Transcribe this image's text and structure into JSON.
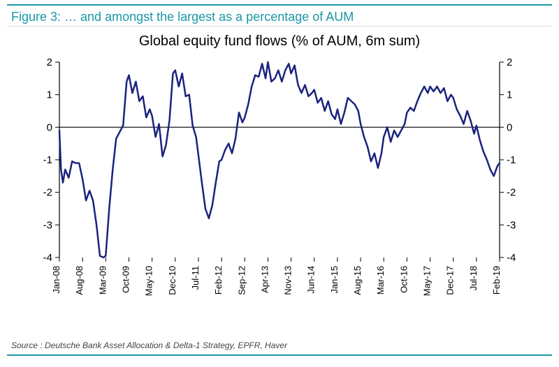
{
  "figure_label": "Figure 3:  … and amongst the largest as a percentage of AUM",
  "chart_title": "Global equity fund flows (% of AUM, 6m sum)",
  "source": "Source : Deutsche Bank Asset Allocation & Delta-1 Strategy, EPFR, Haver",
  "chart": {
    "type": "line",
    "ylim": [
      -4,
      2
    ],
    "ytick_step": 1,
    "x_labels": [
      "Jan-08",
      "Aug-08",
      "Mar-09",
      "Oct-09",
      "May-10",
      "Dec-10",
      "Jul-11",
      "Feb-12",
      "Sep-12",
      "Apr-13",
      "Nov-13",
      "Jun-14",
      "Jan-15",
      "Aug-15",
      "Mar-16",
      "Oct-16",
      "May-17",
      "Dec-17",
      "Jul-18",
      "Feb-19"
    ],
    "line_color": "#1a237e",
    "line_width": 2.5,
    "axis_color": "#000000",
    "tick_color": "#000000",
    "tick_length": 6,
    "background_color": "#ffffff",
    "series": [
      {
        "x": 0.0,
        "y": -0.1
      },
      {
        "x": 0.07,
        "y": -1.3
      },
      {
        "x": 0.15,
        "y": -1.7
      },
      {
        "x": 0.25,
        "y": -1.3
      },
      {
        "x": 0.4,
        "y": -1.55
      },
      {
        "x": 0.55,
        "y": -1.05
      },
      {
        "x": 0.7,
        "y": -1.1
      },
      {
        "x": 0.85,
        "y": -1.1
      },
      {
        "x": 1.0,
        "y": -1.6
      },
      {
        "x": 1.15,
        "y": -2.25
      },
      {
        "x": 1.3,
        "y": -1.95
      },
      {
        "x": 1.45,
        "y": -2.25
      },
      {
        "x": 1.6,
        "y": -3.0
      },
      {
        "x": 1.75,
        "y": -3.95
      },
      {
        "x": 1.9,
        "y": -4.0
      },
      {
        "x": 2.0,
        "y": -3.95
      },
      {
        "x": 2.15,
        "y": -2.5
      },
      {
        "x": 2.3,
        "y": -1.3
      },
      {
        "x": 2.45,
        "y": -0.35
      },
      {
        "x": 2.6,
        "y": -0.15
      },
      {
        "x": 2.75,
        "y": 0.05
      },
      {
        "x": 2.9,
        "y": 1.4
      },
      {
        "x": 3.0,
        "y": 1.6
      },
      {
        "x": 3.15,
        "y": 1.05
      },
      {
        "x": 3.3,
        "y": 1.4
      },
      {
        "x": 3.45,
        "y": 0.8
      },
      {
        "x": 3.6,
        "y": 0.95
      },
      {
        "x": 3.75,
        "y": 0.3
      },
      {
        "x": 3.9,
        "y": 0.55
      },
      {
        "x": 4.0,
        "y": 0.35
      },
      {
        "x": 4.15,
        "y": -0.3
      },
      {
        "x": 4.3,
        "y": 0.1
      },
      {
        "x": 4.45,
        "y": -0.9
      },
      {
        "x": 4.6,
        "y": -0.55
      },
      {
        "x": 4.75,
        "y": 0.2
      },
      {
        "x": 4.9,
        "y": 1.65
      },
      {
        "x": 5.0,
        "y": 1.75
      },
      {
        "x": 5.15,
        "y": 1.25
      },
      {
        "x": 5.3,
        "y": 1.65
      },
      {
        "x": 5.45,
        "y": 0.95
      },
      {
        "x": 5.6,
        "y": 1.0
      },
      {
        "x": 5.75,
        "y": 0.05
      },
      {
        "x": 5.9,
        "y": -0.3
      },
      {
        "x": 6.0,
        "y": -0.85
      },
      {
        "x": 6.15,
        "y": -1.7
      },
      {
        "x": 6.3,
        "y": -2.5
      },
      {
        "x": 6.45,
        "y": -2.8
      },
      {
        "x": 6.6,
        "y": -2.4
      },
      {
        "x": 6.75,
        "y": -1.7
      },
      {
        "x": 6.9,
        "y": -1.05
      },
      {
        "x": 7.0,
        "y": -1.0
      },
      {
        "x": 7.15,
        "y": -0.7
      },
      {
        "x": 7.3,
        "y": -0.5
      },
      {
        "x": 7.45,
        "y": -0.8
      },
      {
        "x": 7.6,
        "y": -0.35
      },
      {
        "x": 7.75,
        "y": 0.45
      },
      {
        "x": 7.9,
        "y": 0.15
      },
      {
        "x": 8.0,
        "y": 0.3
      },
      {
        "x": 8.15,
        "y": 0.7
      },
      {
        "x": 8.3,
        "y": 1.25
      },
      {
        "x": 8.45,
        "y": 1.6
      },
      {
        "x": 8.6,
        "y": 1.55
      },
      {
        "x": 8.75,
        "y": 1.95
      },
      {
        "x": 8.9,
        "y": 1.5
      },
      {
        "x": 9.0,
        "y": 2.0
      },
      {
        "x": 9.15,
        "y": 1.4
      },
      {
        "x": 9.3,
        "y": 1.5
      },
      {
        "x": 9.45,
        "y": 1.75
      },
      {
        "x": 9.6,
        "y": 1.4
      },
      {
        "x": 9.75,
        "y": 1.75
      },
      {
        "x": 9.9,
        "y": 1.95
      },
      {
        "x": 10.0,
        "y": 1.65
      },
      {
        "x": 10.15,
        "y": 1.9
      },
      {
        "x": 10.3,
        "y": 1.3
      },
      {
        "x": 10.45,
        "y": 1.05
      },
      {
        "x": 10.6,
        "y": 1.3
      },
      {
        "x": 10.75,
        "y": 0.95
      },
      {
        "x": 10.9,
        "y": 1.05
      },
      {
        "x": 11.0,
        "y": 1.15
      },
      {
        "x": 11.15,
        "y": 0.75
      },
      {
        "x": 11.3,
        "y": 0.9
      },
      {
        "x": 11.45,
        "y": 0.5
      },
      {
        "x": 11.6,
        "y": 0.8
      },
      {
        "x": 11.75,
        "y": 0.4
      },
      {
        "x": 11.9,
        "y": 0.25
      },
      {
        "x": 12.0,
        "y": 0.55
      },
      {
        "x": 12.15,
        "y": 0.1
      },
      {
        "x": 12.3,
        "y": 0.45
      },
      {
        "x": 12.45,
        "y": 0.9
      },
      {
        "x": 12.6,
        "y": 0.8
      },
      {
        "x": 12.75,
        "y": 0.7
      },
      {
        "x": 12.9,
        "y": 0.5
      },
      {
        "x": 13.0,
        "y": 0.1
      },
      {
        "x": 13.15,
        "y": -0.3
      },
      {
        "x": 13.3,
        "y": -0.6
      },
      {
        "x": 13.45,
        "y": -1.05
      },
      {
        "x": 13.6,
        "y": -0.8
      },
      {
        "x": 13.75,
        "y": -1.25
      },
      {
        "x": 13.9,
        "y": -0.8
      },
      {
        "x": 14.0,
        "y": -0.3
      },
      {
        "x": 14.15,
        "y": 0.0
      },
      {
        "x": 14.3,
        "y": -0.45
      },
      {
        "x": 14.45,
        "y": -0.1
      },
      {
        "x": 14.6,
        "y": -0.3
      },
      {
        "x": 14.75,
        "y": -0.1
      },
      {
        "x": 14.9,
        "y": 0.1
      },
      {
        "x": 15.0,
        "y": 0.45
      },
      {
        "x": 15.15,
        "y": 0.6
      },
      {
        "x": 15.3,
        "y": 0.5
      },
      {
        "x": 15.45,
        "y": 0.8
      },
      {
        "x": 15.6,
        "y": 1.05
      },
      {
        "x": 15.75,
        "y": 1.25
      },
      {
        "x": 15.9,
        "y": 1.05
      },
      {
        "x": 16.0,
        "y": 1.25
      },
      {
        "x": 16.15,
        "y": 1.1
      },
      {
        "x": 16.3,
        "y": 1.25
      },
      {
        "x": 16.45,
        "y": 1.05
      },
      {
        "x": 16.6,
        "y": 1.2
      },
      {
        "x": 16.75,
        "y": 0.8
      },
      {
        "x": 16.9,
        "y": 1.0
      },
      {
        "x": 17.0,
        "y": 0.9
      },
      {
        "x": 17.15,
        "y": 0.55
      },
      {
        "x": 17.3,
        "y": 0.35
      },
      {
        "x": 17.45,
        "y": 0.1
      },
      {
        "x": 17.6,
        "y": 0.5
      },
      {
        "x": 17.75,
        "y": 0.2
      },
      {
        "x": 17.9,
        "y": -0.2
      },
      {
        "x": 18.0,
        "y": 0.05
      },
      {
        "x": 18.15,
        "y": -0.4
      },
      {
        "x": 18.3,
        "y": -0.75
      },
      {
        "x": 18.45,
        "y": -1.0
      },
      {
        "x": 18.6,
        "y": -1.3
      },
      {
        "x": 18.75,
        "y": -1.5
      },
      {
        "x": 18.9,
        "y": -1.2
      },
      {
        "x": 19.0,
        "y": -1.1
      }
    ]
  }
}
